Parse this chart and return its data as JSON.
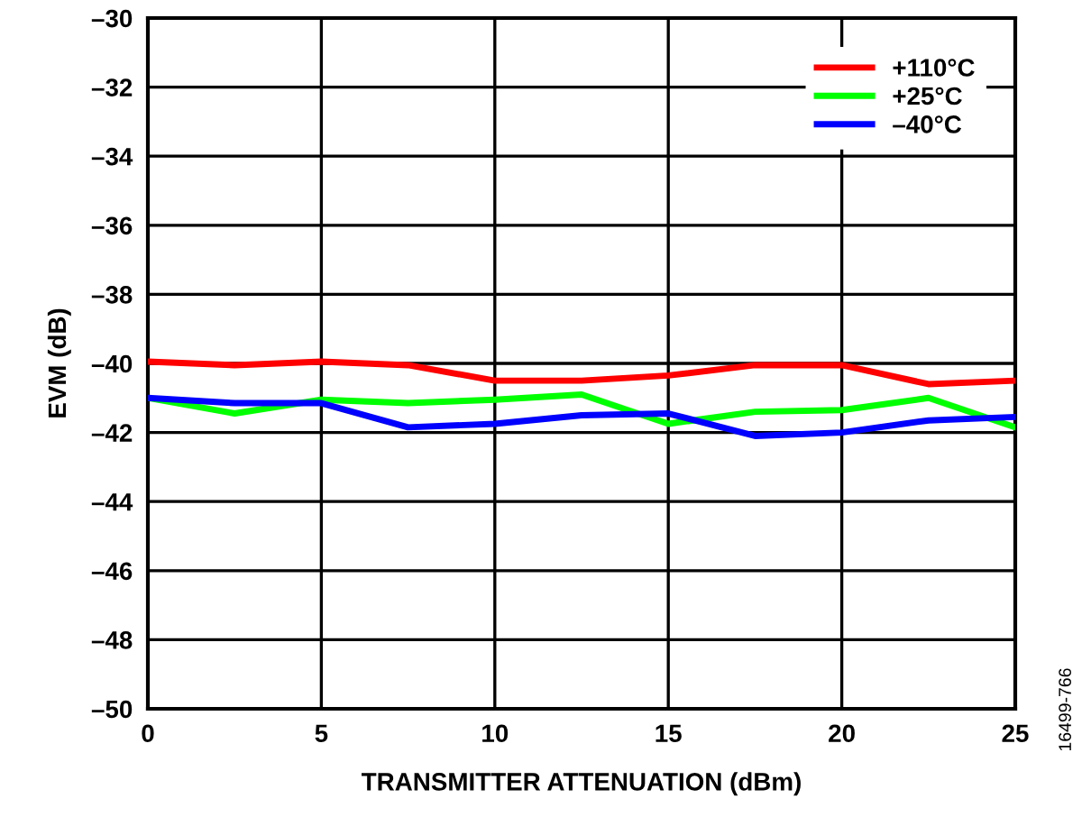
{
  "chart_data": {
    "type": "line",
    "xlabel": "TRANSMITTER ATTENUATION (dBm)",
    "ylabel": "EVM (dB)",
    "x": [
      0,
      2.5,
      5,
      7.5,
      10,
      12.5,
      15,
      17.5,
      20,
      22.5,
      25
    ],
    "series": [
      {
        "name": "+110°C",
        "color": "#ff0000",
        "values": [
          -39.95,
          -40.05,
          -39.95,
          -40.05,
          -40.5,
          -40.5,
          -40.35,
          -40.05,
          -40.05,
          -40.6,
          -40.5
        ]
      },
      {
        "name": "+25°C",
        "color": "#00ff00",
        "values": [
          -41.0,
          -41.45,
          -41.05,
          -41.15,
          -41.05,
          -40.9,
          -41.75,
          -41.4,
          -41.35,
          -41.0,
          -41.85
        ]
      },
      {
        "name": "–40°C",
        "color": "#0000ff",
        "values": [
          -41.0,
          -41.15,
          -41.15,
          -41.85,
          -41.75,
          -41.5,
          -41.45,
          -42.1,
          -42.0,
          -41.65,
          -41.55
        ]
      }
    ],
    "xlim": [
      0,
      25
    ],
    "ylim": [
      -50,
      -30
    ],
    "xticks": [
      0,
      5,
      10,
      15,
      20,
      25
    ],
    "yticks": [
      {
        "value": -50,
        "label": "–50"
      },
      {
        "value": -48,
        "label": "–48"
      },
      {
        "value": -46,
        "label": "–46"
      },
      {
        "value": -44,
        "label": "–44"
      },
      {
        "value": -42,
        "label": "–42"
      },
      {
        "value": -40,
        "label": "–40"
      },
      {
        "value": -38,
        "label": "–38"
      },
      {
        "value": -36,
        "label": "–36"
      },
      {
        "value": -34,
        "label": "–34"
      },
      {
        "value": -32,
        "label": "–32"
      },
      {
        "value": -30,
        "label": "–30"
      }
    ],
    "grid": true,
    "legend": "top right",
    "marker": "none",
    "line_style": "solid",
    "annotations": [
      "16499-766"
    ]
  }
}
